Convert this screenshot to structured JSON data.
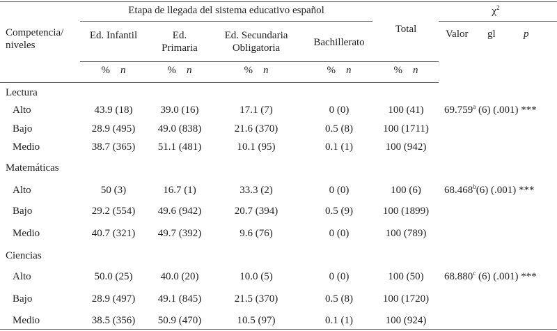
{
  "header": {
    "row_label": "Competencia/ niveles",
    "group": "Etapa de llegada del sistema educativo español",
    "columns": [
      "Ed. Infantil",
      "Ed. Primaria",
      "Ed. Secundaria Obligatoria",
      "Bachillerato"
    ],
    "total": "Total",
    "chi": {
      "symbol": "χ",
      "sup": "2",
      "cols": [
        "Valor",
        "gl",
        "p"
      ]
    },
    "units": [
      {
        "pct": "%",
        "n": "n"
      },
      {
        "pct": "%",
        "n": "n"
      },
      {
        "pct": "%",
        "n": "n"
      },
      {
        "pct": "%",
        "n": "n"
      },
      {
        "pct": "%",
        "n": "n"
      }
    ]
  },
  "groups": [
    {
      "name": "Lectura",
      "chi": {
        "value": "69.759",
        "sup": "a",
        "rest": " (6) (.001) ***"
      },
      "rows": [
        [
          "Alto",
          "43.9 (18)",
          "39.0 (16)",
          "17.1 (7)",
          "0 (0)",
          "100 (41)"
        ],
        [
          "Bajo",
          "28.9 (495)",
          "49.0 (838)",
          "21.6 (370)",
          "0.5 (8)",
          "100 (1711)"
        ],
        [
          "Medio",
          "38.7 (365)",
          "51.1 (481)",
          "10.1 (95)",
          "0.1 (1)",
          "100 (942)"
        ]
      ]
    },
    {
      "name": "Matemáticas",
      "chi": {
        "value": "68.468",
        "sup": "b",
        "rest": "(6) (.001) ***"
      },
      "rows": [
        [
          "Alto",
          "50 (3)",
          "16.7 (1)",
          "33.3 (2)",
          "0 (0)",
          "100 (6)"
        ],
        [
          "Bajo",
          "29.2 (554)",
          "49.6 (942)",
          "20.7 (394)",
          "0.5 (9)",
          "100 (1899)"
        ],
        [
          "Medio",
          "40.7 (321)",
          "49.7 (392)",
          "9.6 (76)",
          "0 (0)",
          "100 (789)"
        ]
      ]
    },
    {
      "name": "Ciencias",
      "chi": {
        "value": "68.880",
        "sup": "c",
        "rest": " (6) (.001) ***"
      },
      "rows": [
        [
          "Alto",
          "50.0 (25)",
          "40.0 (20)",
          "10.0 (5)",
          "0 (0)",
          "100 (50)"
        ],
        [
          "Bajo",
          "28.9 (497)",
          "49.1 (845)",
          "21.5 (370)",
          "0.5 (8)",
          "100 (1720)"
        ],
        [
          "Medio",
          "38.5 (356)",
          "50.9 (470)",
          "10.5 (97)",
          "0.1 (1)",
          "100 (924)"
        ]
      ]
    }
  ]
}
